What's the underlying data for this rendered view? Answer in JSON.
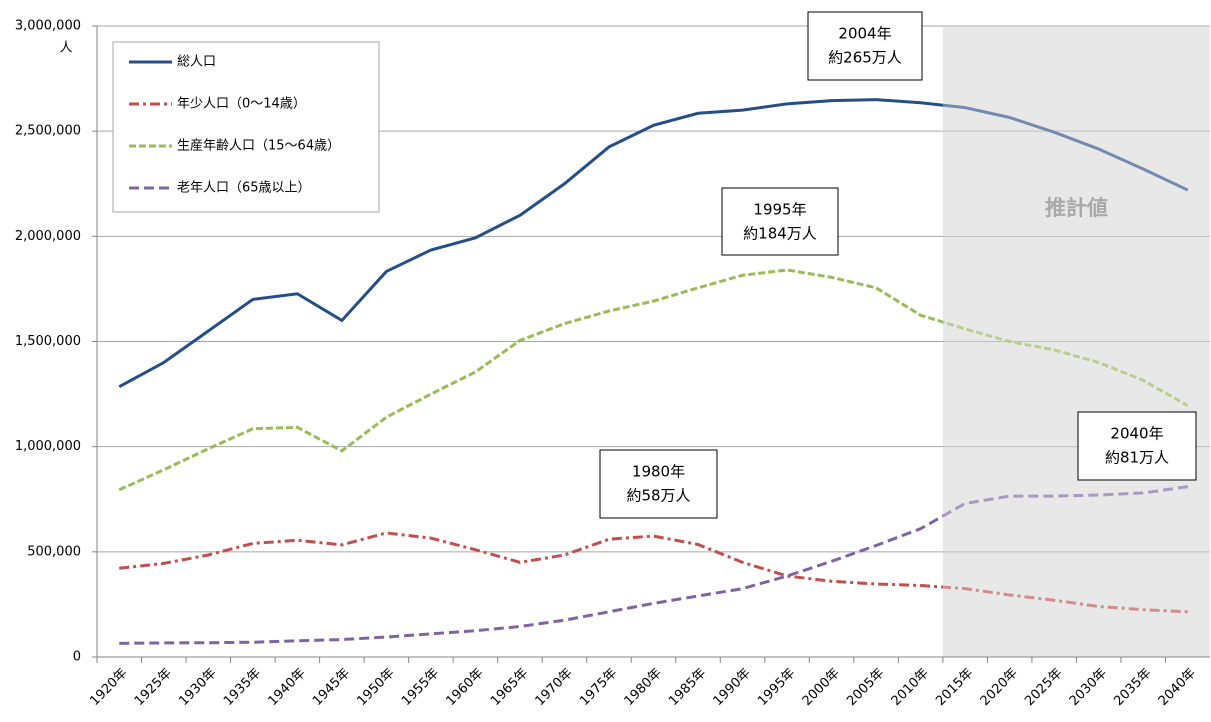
{
  "chart_data": {
    "type": "line",
    "y_unit": "人",
    "projection_label": "推計値",
    "categories": [
      "1920年",
      "1925年",
      "1930年",
      "1935年",
      "1940年",
      "1945年",
      "1950年",
      "1955年",
      "1960年",
      "1965年",
      "1970年",
      "1975年",
      "1980年",
      "1985年",
      "1990年",
      "1995年",
      "2000年",
      "2005年",
      "2010年",
      "2015年",
      "2020年",
      "2025年",
      "2030年",
      "2035年",
      "2040年"
    ],
    "series": [
      {
        "name": "総人口",
        "color": "#254e86",
        "dash": "none",
        "values": [
          1285000,
          1400000,
          1550000,
          1700000,
          1727000,
          1600000,
          1833000,
          1935000,
          1993000,
          2100000,
          2250000,
          2425000,
          2528000,
          2585000,
          2600000,
          2630000,
          2645000,
          2650000,
          2635000,
          2612000,
          2565000,
          2495000,
          2415000,
          2320000,
          2220000
        ]
      },
      {
        "name": "年少人口（0～14歳）",
        "color": "#c0504d",
        "dash": "10,4,3,4",
        "values": [
          422000,
          445000,
          485000,
          540000,
          555000,
          533000,
          590000,
          565000,
          510000,
          450000,
          485000,
          560000,
          575000,
          535000,
          450000,
          385000,
          360000,
          347000,
          340000,
          325000,
          295000,
          270000,
          240000,
          225000,
          215000
        ]
      },
      {
        "name": "生産年齢人口（15～64歳）",
        "color": "#9bbb59",
        "dash": "7,3",
        "values": [
          795000,
          890000,
          990000,
          1085000,
          1092000,
          980000,
          1140000,
          1250000,
          1355000,
          1505000,
          1585000,
          1645000,
          1692000,
          1755000,
          1815000,
          1840000,
          1805000,
          1755000,
          1625000,
          1560000,
          1500000,
          1460000,
          1400000,
          1315000,
          1195000
        ]
      },
      {
        "name": "老年人口（65歳以上）",
        "color": "#8064a2",
        "dash": "10,5",
        "values": [
          65000,
          67000,
          68000,
          70000,
          77000,
          83000,
          95000,
          110000,
          125000,
          145000,
          175000,
          215000,
          255000,
          290000,
          325000,
          385000,
          455000,
          530000,
          610000,
          730000,
          765000,
          765000,
          770000,
          780000,
          810000
        ]
      }
    ],
    "ylim": [
      0,
      3000000
    ],
    "yticks": [
      0,
      {
        "value": 500000,
        "label": "500,000"
      },
      {
        "value": 1000000,
        "label": "1,000,000"
      },
      {
        "value": 1500000,
        "label": "1,500,000"
      },
      {
        "value": 2000000,
        "label": "2,000,000"
      },
      {
        "value": 2500000,
        "label": "2,500,000"
      },
      {
        "value": 3000000,
        "label": "3,000,000"
      }
    ],
    "grid": true,
    "legend_position": "top-left",
    "annotations": [
      {
        "lines": [
          "2004年",
          "約265万人"
        ]
      },
      {
        "lines": [
          "1995年",
          "約184万人"
        ]
      },
      {
        "lines": [
          "1980年",
          "約58万人"
        ]
      },
      {
        "lines": [
          "2040年",
          "約81万人"
        ]
      }
    ]
  }
}
